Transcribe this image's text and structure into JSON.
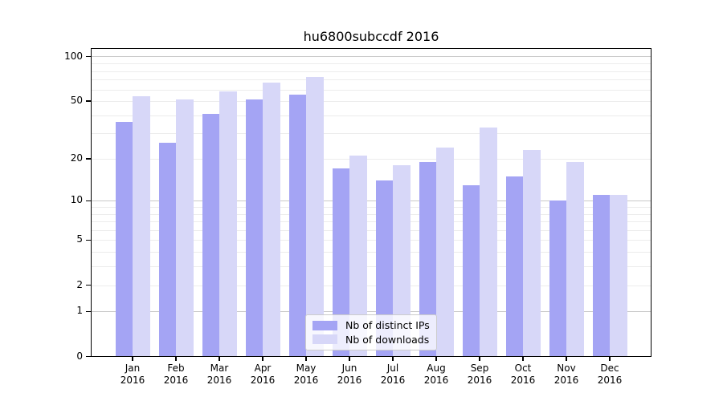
{
  "chart_data": {
    "type": "bar",
    "title": "hu6800subccdf 2016",
    "year": "2016",
    "categories": [
      "Jan",
      "Feb",
      "Mar",
      "Apr",
      "May",
      "Jun",
      "Jul",
      "Aug",
      "Sep",
      "Oct",
      "Nov",
      "Dec"
    ],
    "series": [
      {
        "name": "Nb of distinct IPs",
        "color": "#a4a4f4",
        "values": [
          36,
          26,
          41,
          51,
          55,
          17,
          14,
          19,
          13,
          15,
          10,
          11
        ]
      },
      {
        "name": "Nb of downloads",
        "color": "#d7d7f8",
        "values": [
          54,
          51,
          58,
          67,
          73,
          21,
          18,
          24,
          33,
          23,
          19,
          11
        ]
      }
    ],
    "yscale": "log10(1+x)",
    "ylim": [
      0,
      115
    ],
    "yticks": [
      0,
      1,
      2,
      5,
      10,
      20,
      50,
      100
    ],
    "grid_minor": [
      2,
      3,
      4,
      5,
      6,
      7,
      8,
      9,
      20,
      30,
      40,
      50,
      60,
      70,
      80,
      90
    ],
    "grid_major": [
      1,
      10,
      100
    ],
    "grid_on": true,
    "legend_entries": [
      "Nb of distinct IPs",
      "Nb of downloads"
    ],
    "colors": {
      "grid_minor": "#ececec",
      "grid_major": "#c9c9c9",
      "axis": "#000000",
      "background": "#ffffff"
    }
  }
}
